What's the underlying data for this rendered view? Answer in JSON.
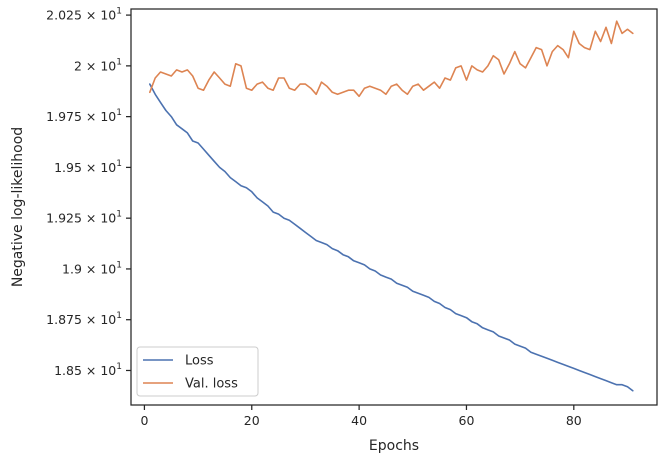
{
  "chart_data": {
    "type": "line",
    "title": "",
    "xlabel": "Epochs",
    "ylabel": "Negative log-likelihood",
    "xlim": [
      -2.5,
      95.5
    ],
    "ylim": [
      18.33,
      20.28
    ],
    "grid": false,
    "legend_position": "lower-left",
    "x_ticks": [
      0,
      20,
      40,
      60,
      80
    ],
    "x_tick_labels": [
      "0",
      "20",
      "40",
      "60",
      "80"
    ],
    "y_ticks": [
      18.5,
      18.75,
      19.0,
      19.25,
      19.5,
      19.75,
      20.0,
      20.25
    ],
    "y_tick_labels": [
      {
        "mantissa": "1.85",
        "base": "10",
        "exp": "1"
      },
      {
        "mantissa": "1.875",
        "base": "10",
        "exp": "1"
      },
      {
        "mantissa": "1.9",
        "base": "10",
        "exp": "1"
      },
      {
        "mantissa": "1.925",
        "base": "10",
        "exp": "1"
      },
      {
        "mantissa": "1.95",
        "base": "10",
        "exp": "1"
      },
      {
        "mantissa": "1.975",
        "base": "10",
        "exp": "1"
      },
      {
        "mantissa": "2",
        "base": "10",
        "exp": "1"
      },
      {
        "mantissa": "2.025",
        "base": "10",
        "exp": "1"
      }
    ],
    "x_start": 1,
    "series": [
      {
        "name": "Loss",
        "color": "#4c72b0",
        "values": [
          19.91,
          19.86,
          19.82,
          19.78,
          19.75,
          19.71,
          19.69,
          19.67,
          19.63,
          19.62,
          19.59,
          19.56,
          19.53,
          19.5,
          19.48,
          19.45,
          19.43,
          19.41,
          19.4,
          19.38,
          19.35,
          19.33,
          19.31,
          19.28,
          19.27,
          19.25,
          19.24,
          19.22,
          19.2,
          19.18,
          19.16,
          19.14,
          19.13,
          19.12,
          19.1,
          19.09,
          19.07,
          19.06,
          19.04,
          19.03,
          19.02,
          19.0,
          18.99,
          18.97,
          18.96,
          18.95,
          18.93,
          18.92,
          18.91,
          18.89,
          18.88,
          18.87,
          18.86,
          18.84,
          18.83,
          18.81,
          18.8,
          18.78,
          18.77,
          18.76,
          18.74,
          18.73,
          18.71,
          18.7,
          18.69,
          18.67,
          18.66,
          18.65,
          18.63,
          18.62,
          18.61,
          18.59,
          18.58,
          18.57,
          18.56,
          18.55,
          18.54,
          18.53,
          18.52,
          18.51,
          18.5,
          18.49,
          18.48,
          18.47,
          18.46,
          18.45,
          18.44,
          18.43,
          18.43,
          18.42,
          18.4
        ]
      },
      {
        "name": "Val. loss",
        "color": "#dd8452",
        "values": [
          19.87,
          19.94,
          19.97,
          19.96,
          19.95,
          19.98,
          19.97,
          19.98,
          19.95,
          19.89,
          19.88,
          19.93,
          19.97,
          19.94,
          19.91,
          19.9,
          20.01,
          20.0,
          19.89,
          19.88,
          19.91,
          19.92,
          19.89,
          19.88,
          19.94,
          19.94,
          19.89,
          19.88,
          19.91,
          19.91,
          19.89,
          19.86,
          19.92,
          19.9,
          19.87,
          19.86,
          19.87,
          19.88,
          19.88,
          19.85,
          19.89,
          19.9,
          19.89,
          19.88,
          19.86,
          19.9,
          19.91,
          19.88,
          19.86,
          19.9,
          19.91,
          19.88,
          19.9,
          19.92,
          19.89,
          19.94,
          19.93,
          19.99,
          20.0,
          19.93,
          20.0,
          19.98,
          19.97,
          20.0,
          20.05,
          20.03,
          19.96,
          20.01,
          20.07,
          20.01,
          19.99,
          20.04,
          20.09,
          20.08,
          20.0,
          20.07,
          20.1,
          20.08,
          20.04,
          20.17,
          20.11,
          20.09,
          20.08,
          20.17,
          20.12,
          20.19,
          20.11,
          20.22,
          20.16,
          20.18,
          20.16
        ]
      }
    ]
  }
}
